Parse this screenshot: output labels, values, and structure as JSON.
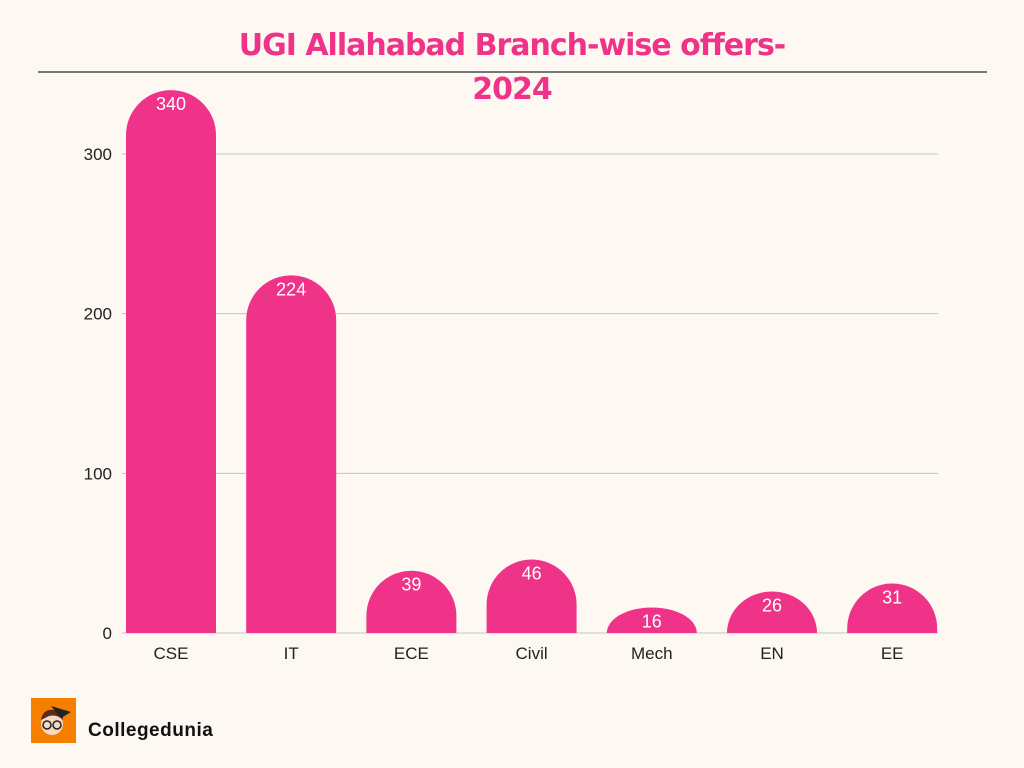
{
  "chart_data": {
    "type": "bar",
    "title": "UGI Allahabad Branch-wise offers-",
    "title_line2": "2024",
    "categories": [
      "CSE",
      "IT",
      "ECE",
      "Civil",
      "Mech",
      "EN",
      "EE"
    ],
    "values": [
      340,
      224,
      39,
      46,
      16,
      26,
      31
    ],
    "xlabel": "",
    "ylabel": "",
    "ylim": [
      0,
      300
    ],
    "yticks": [
      0,
      100,
      200,
      300
    ],
    "grid": true,
    "bar_color": "#ee3388",
    "title_color": "#ee3388"
  },
  "brand": {
    "name": "Collegedunia"
  }
}
